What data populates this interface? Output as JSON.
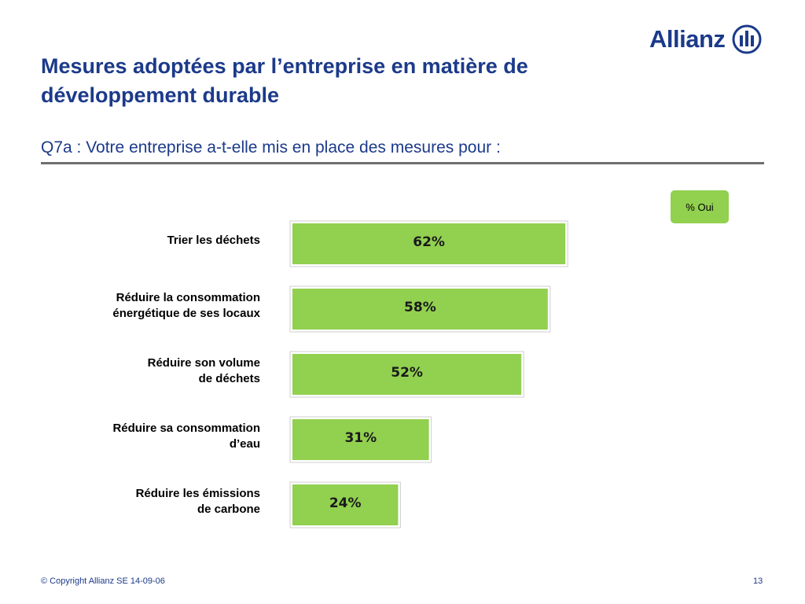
{
  "brand": {
    "name": "Allianz",
    "color": "#1c3a8a",
    "logo_icon": "allianz-eagle-icon"
  },
  "title": "Mesures adoptées par l’entreprise en matière de développement durable",
  "question": "Q7a : Votre entreprise a-t-elle mis en place des mesures pour :",
  "legend": {
    "label": "% Oui",
    "color": "#92d050"
  },
  "chart_data": {
    "type": "bar",
    "orientation": "horizontal",
    "categories": [
      [
        "Trier les déchets"
      ],
      [
        "Réduire la consommation",
        "énergétique de ses locaux"
      ],
      [
        "Réduire son volume",
        "de déchets"
      ],
      [
        "Réduire sa consommation",
        "d’eau"
      ],
      [
        "Réduire les émissions",
        "de carbone"
      ]
    ],
    "series": [
      {
        "name": "% Oui",
        "values": [
          62,
          58,
          52,
          31,
          24
        ],
        "labels": [
          "62%",
          "58%",
          "52%",
          "31%",
          "24%"
        ],
        "color": "#92d050"
      }
    ],
    "xlim": [
      0,
      100
    ],
    "grid": false,
    "legend_position": "top-right"
  },
  "footer": {
    "copyright": "© Copyright Allianz SE 14-09-06",
    "page_number": "13"
  }
}
